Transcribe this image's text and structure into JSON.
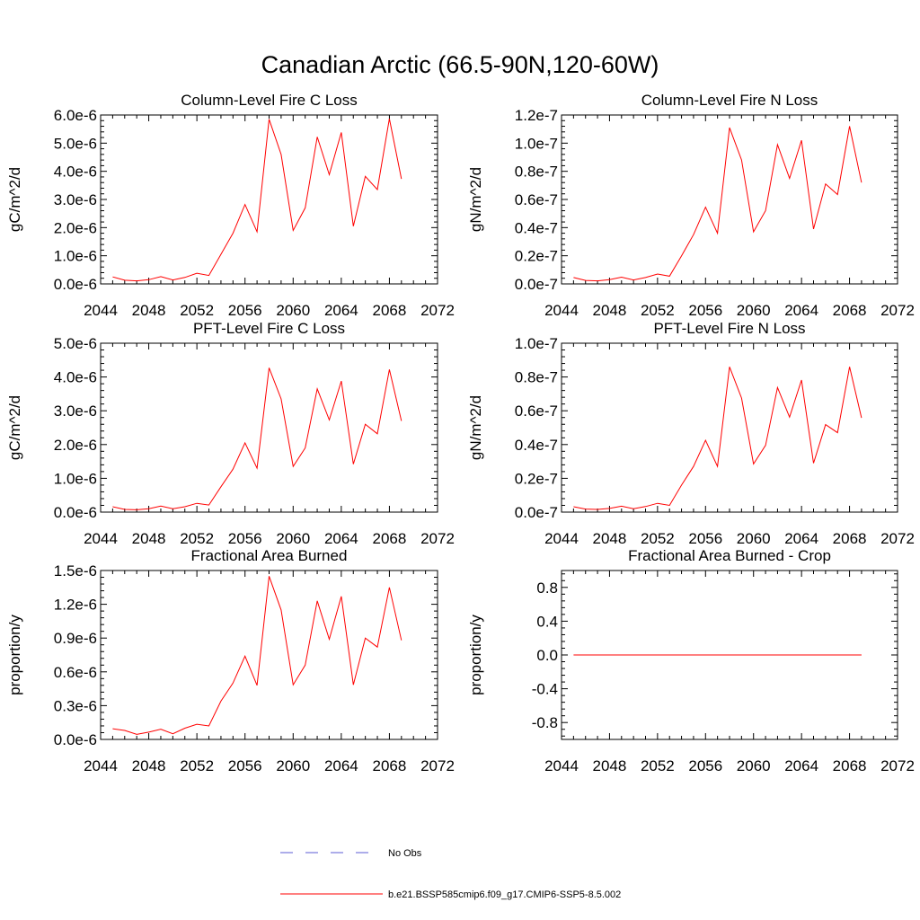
{
  "page_title": "Canadian Arctic (66.5-90N,120-60W)",
  "legend": {
    "items": [
      {
        "label": "No Obs",
        "style": "dashed",
        "color": "#5b5bd6"
      },
      {
        "label": "b.e21.BSSP585cmip6.f09_g17.CMIP6-SSP5-8.5.002",
        "style": "solid",
        "color": "#ff0000"
      }
    ]
  },
  "chart_data": [
    {
      "type": "line",
      "title": "Column-Level Fire C Loss",
      "ylabel": "gC/m^2/d",
      "xlim": [
        2044,
        2072
      ],
      "ylim": [
        0,
        6e-06
      ],
      "yticks": [
        0,
        1e-06,
        2e-06,
        3e-06,
        4e-06,
        5e-06,
        6e-06
      ],
      "ytick_labels": [
        "0.0e-6",
        "1.0e-6",
        "2.0e-6",
        "3.0e-6",
        "4.0e-6",
        "5.0e-6",
        "6.0e-6"
      ],
      "xticks": [
        2044,
        2048,
        2052,
        2056,
        2060,
        2064,
        2068,
        2072
      ],
      "xtick_labels": [
        "2044",
        "2048",
        "2052",
        "2056",
        "2060",
        "2064",
        "2068",
        "2072"
      ],
      "series": [
        {
          "color": "#ff0000",
          "x": [
            2045,
            2046,
            2047,
            2048,
            2049,
            2050,
            2051,
            2052,
            2053,
            2054,
            2055,
            2056,
            2057,
            2058,
            2059,
            2060,
            2061,
            2062,
            2063,
            2064,
            2065,
            2066,
            2067,
            2068,
            2069
          ],
          "values": [
            2.5e-07,
            1.3e-07,
            1.1e-07,
            1.5e-07,
            2.6e-07,
            1.4e-07,
            2.3e-07,
            3.8e-07,
            3e-07,
            1.05e-06,
            1.8e-06,
            2.82e-06,
            1.85e-06,
            5.85e-06,
            4.6e-06,
            1.9e-06,
            2.7e-06,
            5.22e-06,
            3.88e-06,
            5.38e-06,
            2.05e-06,
            3.82e-06,
            3.35e-06,
            5.87e-06,
            3.73e-06
          ]
        }
      ]
    },
    {
      "type": "line",
      "title": "Column-Level Fire N Loss",
      "ylabel": "gN/m^2/d",
      "xlim": [
        2044,
        2072
      ],
      "ylim": [
        0,
        1.2e-07
      ],
      "yticks": [
        0,
        2e-08,
        4e-08,
        6e-08,
        8e-08,
        1e-07,
        1.2e-07
      ],
      "ytick_labels": [
        "0.0e-7",
        "0.2e-7",
        "0.4e-7",
        "0.6e-7",
        "0.8e-7",
        "1.0e-7",
        "1.2e-7"
      ],
      "xticks": [
        2044,
        2048,
        2052,
        2056,
        2060,
        2064,
        2068,
        2072
      ],
      "xtick_labels": [
        "2044",
        "2048",
        "2052",
        "2056",
        "2060",
        "2064",
        "2068",
        "2072"
      ],
      "series": [
        {
          "color": "#ff0000",
          "x": [
            2045,
            2046,
            2047,
            2048,
            2049,
            2050,
            2051,
            2052,
            2053,
            2054,
            2055,
            2056,
            2057,
            2058,
            2059,
            2060,
            2061,
            2062,
            2063,
            2064,
            2065,
            2066,
            2067,
            2068,
            2069
          ],
          "values": [
            4.5e-09,
            2.5e-09,
            2.2e-09,
            3e-09,
            4.8e-09,
            2.8e-09,
            4.5e-09,
            7e-09,
            5.5e-09,
            2e-08,
            3.5e-08,
            5.45e-08,
            3.6e-08,
            1.11e-07,
            8.8e-08,
            3.7e-08,
            5.2e-08,
            9.9e-08,
            7.5e-08,
            1.02e-07,
            3.9e-08,
            7.1e-08,
            6.35e-08,
            1.12e-07,
            7.2e-08
          ]
        }
      ]
    },
    {
      "type": "line",
      "title": "PFT-Level Fire C Loss",
      "ylabel": "gC/m^2/d",
      "xlim": [
        2044,
        2072
      ],
      "ylim": [
        0,
        5e-06
      ],
      "yticks": [
        0,
        1e-06,
        2e-06,
        3e-06,
        4e-06,
        5e-06
      ],
      "ytick_labels": [
        "0.0e-6",
        "1.0e-6",
        "2.0e-6",
        "3.0e-6",
        "4.0e-6",
        "5.0e-6"
      ],
      "xticks": [
        2044,
        2048,
        2052,
        2056,
        2060,
        2064,
        2068,
        2072
      ],
      "xtick_labels": [
        "2044",
        "2048",
        "2052",
        "2056",
        "2060",
        "2064",
        "2068",
        "2072"
      ],
      "series": [
        {
          "color": "#ff0000",
          "x": [
            2045,
            2046,
            2047,
            2048,
            2049,
            2050,
            2051,
            2052,
            2053,
            2054,
            2055,
            2056,
            2057,
            2058,
            2059,
            2060,
            2061,
            2062,
            2063,
            2064,
            2065,
            2066,
            2067,
            2068,
            2069
          ],
          "values": [
            1.6e-07,
            8e-08,
            7e-08,
            1e-07,
            1.8e-07,
            1e-07,
            1.6e-07,
            2.6e-07,
            2.1e-07,
            7.5e-07,
            1.27e-06,
            2.05e-06,
            1.3e-06,
            4.27e-06,
            3.35e-06,
            1.35e-06,
            1.9e-06,
            3.65e-06,
            2.73e-06,
            3.88e-06,
            1.42e-06,
            2.6e-06,
            2.32e-06,
            4.22e-06,
            2.7e-06
          ]
        }
      ]
    },
    {
      "type": "line",
      "title": "PFT-Level Fire N Loss",
      "ylabel": "gN/m^2/d",
      "xlim": [
        2044,
        2072
      ],
      "ylim": [
        0,
        1e-07
      ],
      "yticks": [
        0,
        2e-08,
        4e-08,
        6e-08,
        8e-08,
        1e-07
      ],
      "ytick_labels": [
        "0.0e-7",
        "0.2e-7",
        "0.4e-7",
        "0.6e-7",
        "0.8e-7",
        "1.0e-7"
      ],
      "xticks": [
        2044,
        2048,
        2052,
        2056,
        2060,
        2064,
        2068,
        2072
      ],
      "xtick_labels": [
        "2044",
        "2048",
        "2052",
        "2056",
        "2060",
        "2064",
        "2068",
        "2072"
      ],
      "series": [
        {
          "color": "#ff0000",
          "x": [
            2045,
            2046,
            2047,
            2048,
            2049,
            2050,
            2051,
            2052,
            2053,
            2054,
            2055,
            2056,
            2057,
            2058,
            2059,
            2060,
            2061,
            2062,
            2063,
            2064,
            2065,
            2066,
            2067,
            2068,
            2069
          ],
          "values": [
            3.2e-09,
            1.8e-09,
            1.6e-09,
            2.2e-09,
            3.5e-09,
            2e-09,
            3.3e-09,
            5.2e-09,
            4e-09,
            1.6e-08,
            2.7e-08,
            4.25e-08,
            2.7e-08,
            8.6e-08,
            6.75e-08,
            2.85e-08,
            3.95e-08,
            7.38e-08,
            5.62e-08,
            7.82e-08,
            2.9e-08,
            5.18e-08,
            4.7e-08,
            8.6e-08,
            5.58e-08
          ]
        }
      ]
    },
    {
      "type": "line",
      "title": "Fractional Area Burned",
      "ylabel": "proportion/y",
      "xlim": [
        2044,
        2072
      ],
      "ylim": [
        0,
        1.5e-06
      ],
      "yticks": [
        0,
        3e-07,
        6e-07,
        9e-07,
        1.2e-06,
        1.5e-06
      ],
      "ytick_labels": [
        "0.0e-6",
        "0.3e-6",
        "0.6e-6",
        "0.9e-6",
        "1.2e-6",
        "1.5e-6"
      ],
      "xticks": [
        2044,
        2048,
        2052,
        2056,
        2060,
        2064,
        2068,
        2072
      ],
      "xtick_labels": [
        "2044",
        "2048",
        "2052",
        "2056",
        "2060",
        "2064",
        "2068",
        "2072"
      ],
      "series": [
        {
          "color": "#ff0000",
          "x": [
            2045,
            2046,
            2047,
            2048,
            2049,
            2050,
            2051,
            2052,
            2053,
            2054,
            2055,
            2056,
            2057,
            2058,
            2059,
            2060,
            2061,
            2062,
            2063,
            2064,
            2065,
            2066,
            2067,
            2068,
            2069
          ],
          "values": [
            9.5e-08,
            8e-08,
            4.5e-08,
            6.5e-08,
            9e-08,
            5e-08,
            1e-07,
            1.35e-07,
            1.2e-07,
            3.4e-07,
            5e-07,
            7.4e-07,
            4.8e-07,
            1.45e-06,
            1.15e-06,
            4.85e-07,
            6.6e-07,
            1.23e-06,
            8.9e-07,
            1.27e-06,
            4.85e-07,
            9e-07,
            8.2e-07,
            1.35e-06,
            8.8e-07
          ]
        }
      ]
    },
    {
      "type": "line",
      "title": "Fractional Area Burned - Crop",
      "ylabel": "proportion/y",
      "xlim": [
        2044,
        2072
      ],
      "ylim": [
        -1.0,
        1.0
      ],
      "yticks": [
        -0.8,
        -0.4,
        0.0,
        0.4,
        0.8
      ],
      "ytick_labels": [
        "-0.8",
        "-0.4",
        "0.0",
        "0.4",
        "0.8"
      ],
      "xticks": [
        2044,
        2048,
        2052,
        2056,
        2060,
        2064,
        2068,
        2072
      ],
      "xtick_labels": [
        "2044",
        "2048",
        "2052",
        "2056",
        "2060",
        "2064",
        "2068",
        "2072"
      ],
      "series": [
        {
          "color": "#ff0000",
          "x": [
            2045,
            2069
          ],
          "values": [
            0,
            0
          ]
        }
      ]
    }
  ]
}
